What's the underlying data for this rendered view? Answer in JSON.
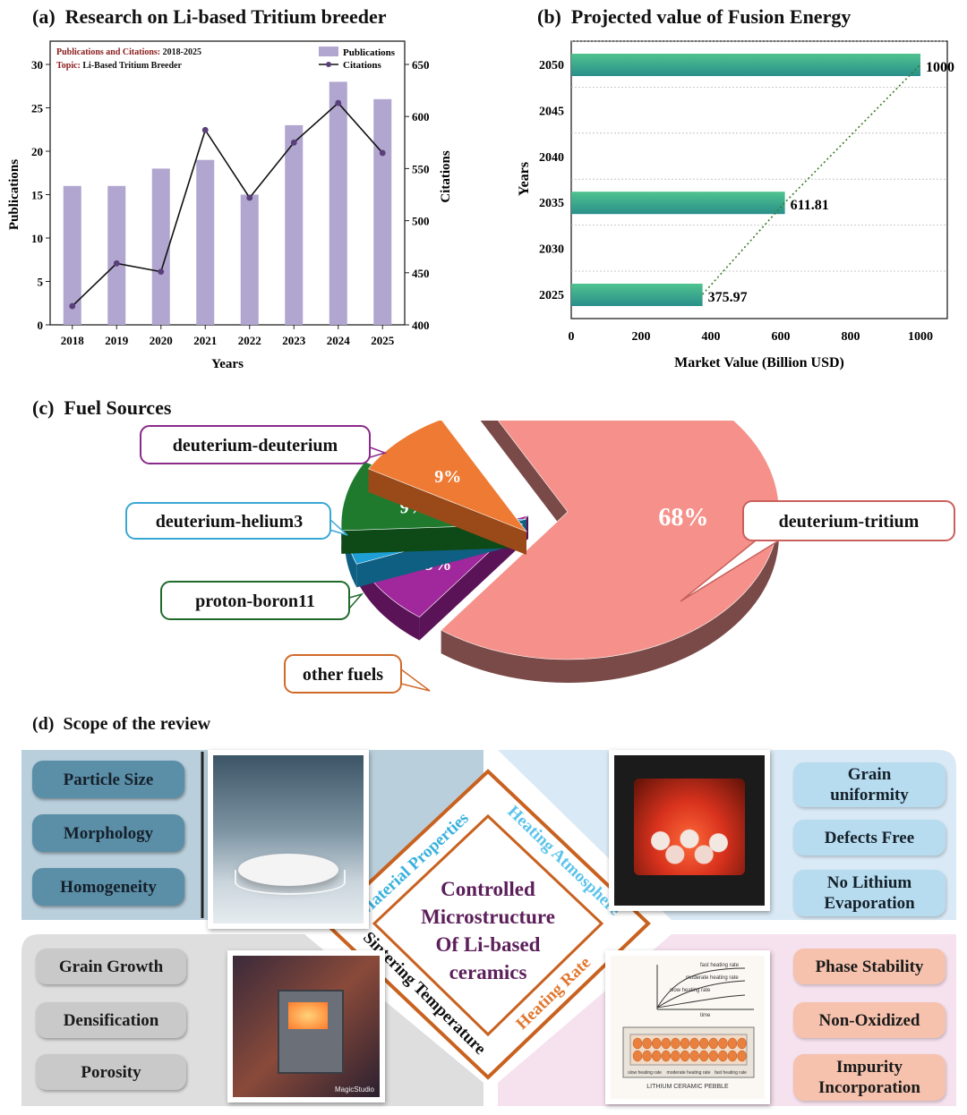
{
  "panel_a": {
    "heading": "(a)  Research on Li-based Tritium breeder",
    "info_line1_key": "Publications and Citations:",
    "info_line1_val": "2018-2025",
    "info_line2_key": "Topic:",
    "info_line2_val": "Li-Based Tritium Breeder"
  },
  "panel_b": {
    "heading": "(b)  Projected value of Fusion Energy"
  },
  "panel_c": {
    "heading": "(c)  Fuel Sources"
  },
  "panel_d": {
    "heading": "(d)  Scope of the review",
    "left_top": [
      "Particle Size",
      "Morphology",
      "Homogeneity"
    ],
    "right_top": [
      "Grain uniformity",
      "Defects Free",
      "No Lithium Evaporation"
    ],
    "left_bottom": [
      "Grain Growth",
      "Densification",
      "Porosity"
    ],
    "right_bottom": [
      "Phase Stability",
      "Non-Oxidized",
      "Impurity Incorporation"
    ],
    "diamond_center": [
      "Controlled",
      "Microstructure",
      "Of Li-based",
      "ceramics"
    ],
    "edge_top_left": "Material Properties",
    "edge_top_right": "Heating Atmosphere",
    "edge_bottom_left": "Sintering Temperature",
    "edge_bottom_right": "Heating Rate",
    "image_label_br": "LITHIUM CERAMIC PEBBLE",
    "image_curve_labels": [
      "fast heating rate",
      "moderate heating rate",
      "slow heating rate",
      "time"
    ],
    "image_bottom_labels": [
      "slow heating rate",
      "moderate heating rate",
      "fast heating rate"
    ],
    "image_watermark": "MagicStudio"
  },
  "colors": {
    "bar_a": "#b1a6cf",
    "citation_marker": "#5a3f7a",
    "bar_b_top": "#4fc38f",
    "bar_b_bottom": "#2a8f8a",
    "pie_dt": "#f5918a",
    "pie_dd": "#a0279c",
    "pie_dhe3": "#1ea0d6",
    "pie_pb11": "#1f7a2e",
    "pie_other": "#ee7a33",
    "text_red": "#8b1a1a"
  },
  "chart_data": [
    {
      "type": "bar",
      "title": "",
      "categories": [
        "2018",
        "2019",
        "2020",
        "2021",
        "2022",
        "2023",
        "2024",
        "2025"
      ],
      "series": [
        {
          "name": "Publications",
          "axis": "left",
          "values": [
            16,
            16,
            18,
            19,
            15,
            23,
            28,
            26
          ]
        },
        {
          "name": "Citations",
          "axis": "right",
          "type": "line",
          "values": [
            418,
            459,
            451,
            587,
            522,
            575,
            613,
            565
          ]
        }
      ],
      "xlabel": "Years",
      "ylabel": "Publications",
      "y2label": "Citations",
      "ylim": [
        0,
        30
      ],
      "y2lim": [
        400,
        650
      ],
      "yticks": [
        0,
        5,
        10,
        15,
        20,
        25,
        30
      ],
      "y2ticks": [
        400,
        450,
        500,
        550,
        600,
        650
      ],
      "legend": "top-right"
    },
    {
      "type": "bar",
      "orientation": "horizontal",
      "categories": [
        "2025",
        "2030",
        "2035",
        "2040",
        "2045",
        "2050"
      ],
      "values": [
        375.97,
        null,
        611.81,
        null,
        null,
        1000
      ],
      "value_labels": [
        "375.97",
        "",
        "611.81",
        "",
        "",
        "1000"
      ],
      "xlabel": "Market Value (Billion USD)",
      "ylabel": "Years",
      "xlim": [
        0,
        1000
      ],
      "xticks": [
        0,
        200,
        400,
        600,
        800,
        1000
      ],
      "trend_line": "dotted"
    },
    {
      "type": "pie",
      "labels": [
        "deuterium-tritium",
        "deuterium-deuterium",
        "deuterium-helium3",
        "proton-boron11",
        "other fuels"
      ],
      "values": [
        68,
        9,
        5,
        9,
        9
      ],
      "value_labels": [
        "68%",
        "9%",
        "5%",
        "9%",
        "9%"
      ]
    }
  ]
}
